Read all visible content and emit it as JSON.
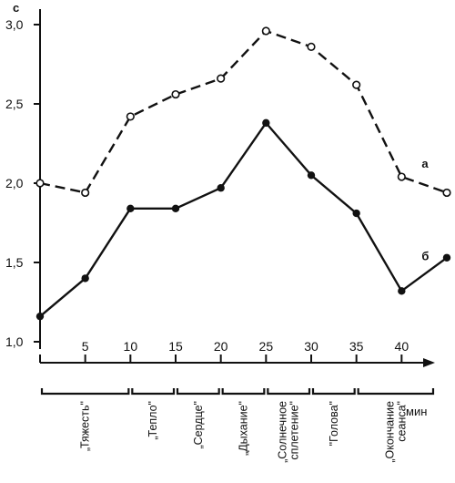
{
  "chart_data": {
    "type": "line",
    "ylabel": "с",
    "xunit": "мин",
    "ylim": [
      1.0,
      3.0
    ],
    "yticks": [
      "1,0",
      "1,5",
      "2,0",
      "2,5",
      "3,0"
    ],
    "ytick_values": [
      1.0,
      1.5,
      2.0,
      2.5,
      3.0
    ],
    "xlim": [
      0,
      45
    ],
    "xticks": [
      5,
      10,
      15,
      20,
      25,
      30,
      35,
      40
    ],
    "xtick_labels": [
      "5",
      "10",
      "15",
      "20",
      "25",
      "30",
      "35",
      "40"
    ],
    "x": [
      0,
      5,
      10,
      15,
      20,
      25,
      30,
      35,
      40,
      45
    ],
    "series": [
      {
        "name": "а",
        "line_style": "dashed",
        "marker": "open-circle",
        "values": [
          2.0,
          1.94,
          2.42,
          2.56,
          2.66,
          2.96,
          2.86,
          2.62,
          2.04,
          1.94
        ]
      },
      {
        "name": "б",
        "line_style": "solid",
        "marker": "filled-circle",
        "values": [
          1.16,
          1.4,
          1.84,
          1.84,
          1.97,
          2.38,
          2.05,
          1.81,
          1.32,
          1.53
        ]
      }
    ],
    "phases": [
      {
        "label": "„Тяжесть\"",
        "from": 0,
        "to": 10
      },
      {
        "label": "„Тепло\"",
        "from": 10,
        "to": 15
      },
      {
        "label": "„Сердце\"",
        "from": 15,
        "to": 20
      },
      {
        "label": "„Дыхание\"",
        "from": 20,
        "to": 25
      },
      {
        "label": "„Солнечное сплетение\"",
        "from": 25,
        "to": 30
      },
      {
        "label": "\"Голова\"",
        "from": 30,
        "to": 35
      },
      {
        "label": "„Окончание сеанса\"",
        "from": 35,
        "to": 45
      }
    ],
    "grid": false,
    "legend": "none"
  }
}
